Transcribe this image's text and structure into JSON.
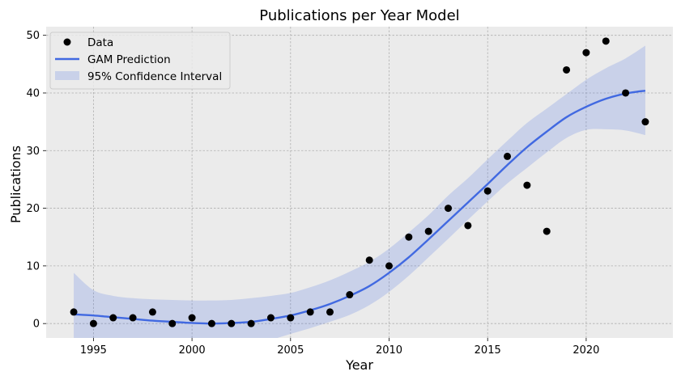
{
  "chart_data": {
    "type": "scatter",
    "title": "Publications per Year Model",
    "xlabel": "Year",
    "ylabel": "Publications",
    "xlim": [
      1992.6,
      2024.4
    ],
    "ylim": [
      -2.5,
      51.5
    ],
    "xticks": [
      "1995",
      "2000",
      "2005",
      "2010",
      "2015",
      "2020"
    ],
    "yticks": [
      "0",
      "10",
      "20",
      "30",
      "40",
      "50"
    ],
    "grid": true,
    "legend_position": "top-left",
    "legend": [
      "Data",
      "GAM Prediction",
      "95% Confidence Interval"
    ],
    "colors": {
      "data": "#000000",
      "line": "#4169e1",
      "band": "#4169e1",
      "background": "#ebebeb",
      "grid": "#b0b0b0"
    },
    "series": [
      {
        "name": "Data",
        "kind": "scatter",
        "x": [
          1994,
          1995,
          1996,
          1997,
          1998,
          1999,
          2000,
          2001,
          2002,
          2003,
          2004,
          2005,
          2006,
          2007,
          2008,
          2009,
          2010,
          2011,
          2012,
          2013,
          2014,
          2015,
          2016,
          2017,
          2018,
          2019,
          2020,
          2021,
          2022,
          2023
        ],
        "y": [
          2,
          0,
          1,
          1,
          2,
          0,
          1,
          0,
          0,
          0,
          1,
          1,
          2,
          2,
          5,
          11,
          10,
          15,
          16,
          20,
          17,
          23,
          29,
          24,
          16,
          44,
          47,
          49,
          40,
          35
        ]
      },
      {
        "name": "GAM Prediction",
        "kind": "line",
        "x": [
          1994,
          1995,
          1996,
          1997,
          1998,
          1999,
          2000,
          2001,
          2002,
          2003,
          2004,
          2005,
          2006,
          2007,
          2008,
          2009,
          2010,
          2011,
          2012,
          2013,
          2014,
          2015,
          2016,
          2017,
          2018,
          2019,
          2020,
          2021,
          2022,
          2023
        ],
        "y": [
          1.6,
          1.4,
          1.1,
          0.8,
          0.5,
          0.3,
          0.1,
          0.0,
          0.1,
          0.3,
          0.8,
          1.4,
          2.3,
          3.4,
          4.8,
          6.5,
          8.8,
          11.5,
          14.6,
          17.8,
          21.0,
          24.2,
          27.5,
          30.6,
          33.3,
          35.8,
          37.6,
          39.0,
          39.9,
          40.4
        ]
      },
      {
        "name": "95% Confidence Interval",
        "kind": "band",
        "x": [
          1994,
          1995,
          1996,
          1997,
          1998,
          1999,
          2000,
          2001,
          2002,
          2003,
          2004,
          2005,
          2006,
          2007,
          2008,
          2009,
          2010,
          2011,
          2012,
          2013,
          2014,
          2015,
          2016,
          2017,
          2018,
          2019,
          2020,
          2021,
          2022,
          2023
        ],
        "lower": [
          -5.5,
          -2.8,
          -2.6,
          -3.0,
          -3.5,
          -3.8,
          -4.0,
          -4.0,
          -3.8,
          -3.4,
          -2.8,
          -1.8,
          -0.8,
          0.3,
          1.5,
          3.2,
          5.5,
          8.3,
          11.5,
          14.7,
          18.0,
          21.2,
          24.3,
          27.0,
          29.7,
          32.2,
          33.6,
          33.7,
          33.5,
          32.7
        ],
        "upper": [
          8.8,
          5.8,
          4.8,
          4.4,
          4.2,
          4.1,
          4.0,
          4.0,
          4.1,
          4.4,
          4.8,
          5.3,
          6.3,
          7.5,
          9.0,
          10.7,
          13.0,
          15.8,
          18.8,
          22.2,
          25.2,
          28.5,
          31.7,
          34.8,
          37.3,
          39.8,
          42.3,
          44.3,
          46.0,
          48.2
        ]
      }
    ]
  }
}
